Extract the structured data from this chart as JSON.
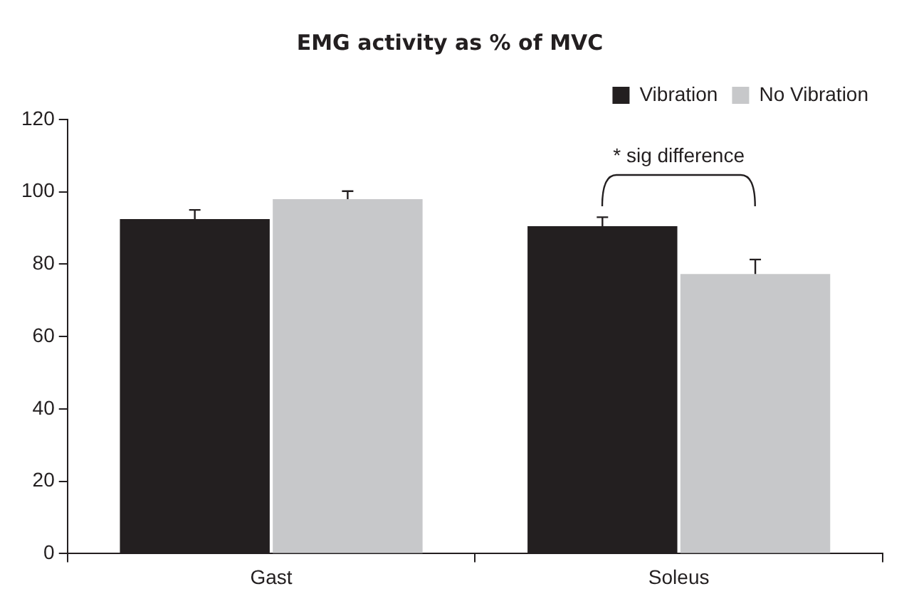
{
  "chart_data": {
    "type": "bar",
    "title": "EMG activity as % of MVC",
    "categories": [
      "Gast",
      "Soleus"
    ],
    "series": [
      {
        "name": "Vibration",
        "color": "#231f20",
        "values": [
          92.5,
          90.5
        ],
        "errors": [
          [
            92.5,
            95
          ],
          [
            90.5,
            93
          ]
        ]
      },
      {
        "name": "No Vibration",
        "color": "#c7c8ca",
        "values": [
          98,
          77.3
        ],
        "errors": [
          [
            98,
            100.2
          ],
          [
            77.3,
            81.3
          ]
        ]
      }
    ],
    "ylim": [
      0,
      120
    ],
    "yticks": [
      0,
      20,
      40,
      60,
      80,
      100,
      120
    ],
    "grid": false,
    "legend": "top right",
    "annotations": [
      "* sig difference"
    ]
  }
}
